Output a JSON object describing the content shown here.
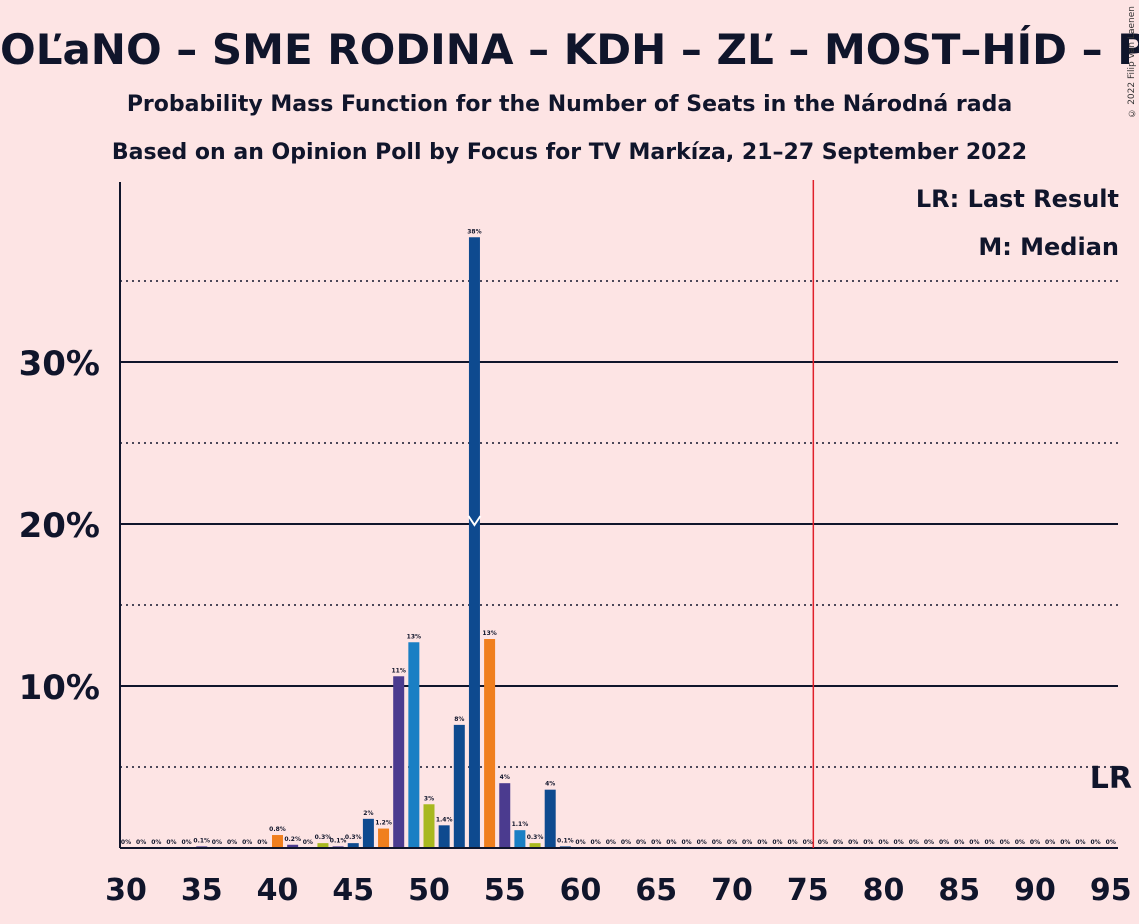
{
  "header": {
    "title": "OĽaNO – SME RODINA – KDH – ZĽ – MOST–HÍD – PS–SPOLU – SaS",
    "subtitle": "Probability Mass Function for the Number of Seats in the Národná rada",
    "subtitle2": "Based on an Opinion Poll by Focus for TV Markíza, 21–27 September 2022",
    "copyright": "© 2022 Filip van Laenen"
  },
  "legend": {
    "last_result": "LR: Last Result",
    "median": "M: Median",
    "lr_marker": "LR"
  },
  "colors": {
    "background": "#fde4e4",
    "axis": "#10152b",
    "majority_line": "#e0202a",
    "bar_palette": [
      "#4b3b8f",
      "#0e4a8f",
      "#1a7fc4",
      "#f07f1e",
      "#a8b81f",
      "#3d8a3a"
    ]
  },
  "chart_data": {
    "type": "bar",
    "xlim": [
      30,
      95
    ],
    "ylim": [
      0,
      40
    ],
    "x_ticks": [
      30,
      35,
      40,
      45,
      50,
      55,
      60,
      65,
      70,
      75,
      80,
      85,
      90,
      95
    ],
    "y_ticks_labeled": [
      {
        "value": 10,
        "label": "10%"
      },
      {
        "value": 20,
        "label": "20%"
      },
      {
        "value": 30,
        "label": "30%"
      }
    ],
    "y_gridlines_dotted": [
      5,
      15,
      25,
      35
    ],
    "majority_line": 76,
    "last_result": 95,
    "median": 53,
    "bars": [
      {
        "x": 30,
        "value": 0,
        "label": "0%",
        "color": "#4b3b8f"
      },
      {
        "x": 31,
        "value": 0,
        "label": "0%",
        "color": "#0e4a8f"
      },
      {
        "x": 32,
        "value": 0,
        "label": "0%",
        "color": "#1a7fc4"
      },
      {
        "x": 33,
        "value": 0,
        "label": "0%",
        "color": "#f07f1e"
      },
      {
        "x": 34,
        "value": 0,
        "label": "0%",
        "color": "#a8b81f"
      },
      {
        "x": 35,
        "value": 0.1,
        "label": "0.1%",
        "color": "#4b3b8f"
      },
      {
        "x": 36,
        "value": 0,
        "label": "0%",
        "color": "#0e4a8f"
      },
      {
        "x": 37,
        "value": 0,
        "label": "0%",
        "color": "#1a7fc4"
      },
      {
        "x": 38,
        "value": 0,
        "label": "0%",
        "color": "#f07f1e"
      },
      {
        "x": 39,
        "value": 0,
        "label": "0%",
        "color": "#a8b81f"
      },
      {
        "x": 40,
        "value": 0.8,
        "label": "0.8%",
        "color": "#f07f1e"
      },
      {
        "x": 41,
        "value": 0.2,
        "label": "0.2%",
        "color": "#4b3b8f"
      },
      {
        "x": 42,
        "value": 0,
        "label": "0%",
        "color": "#0e4a8f"
      },
      {
        "x": 43,
        "value": 0.3,
        "label": "0.3%",
        "color": "#a8b81f"
      },
      {
        "x": 44,
        "value": 0.1,
        "label": "0.1%",
        "color": "#4b3b8f"
      },
      {
        "x": 45,
        "value": 0.3,
        "label": "0.3%",
        "color": "#0e4a8f"
      },
      {
        "x": 46,
        "value": 1.8,
        "label": "2%",
        "color": "#0e4a8f"
      },
      {
        "x": 47,
        "value": 1.2,
        "label": "1.2%",
        "color": "#f07f1e"
      },
      {
        "x": 48,
        "value": 10.6,
        "label": "11%",
        "color": "#4b3b8f"
      },
      {
        "x": 49,
        "value": 12.7,
        "label": "13%",
        "color": "#1a7fc4"
      },
      {
        "x": 50,
        "value": 2.7,
        "label": "3%",
        "color": "#a8b81f"
      },
      {
        "x": 51,
        "value": 1.4,
        "label": "1.4%",
        "color": "#0e4a8f"
      },
      {
        "x": 52,
        "value": 7.6,
        "label": "8%",
        "color": "#0e4a8f"
      },
      {
        "x": 53,
        "value": 37.7,
        "label": "38%",
        "color": "#0e4a8f"
      },
      {
        "x": 54,
        "value": 12.9,
        "label": "13%",
        "color": "#f07f1e"
      },
      {
        "x": 55,
        "value": 4.0,
        "label": "4%",
        "color": "#4b3b8f"
      },
      {
        "x": 56,
        "value": 1.1,
        "label": "1.1%",
        "color": "#1a7fc4"
      },
      {
        "x": 57,
        "value": 0.3,
        "label": "0.3%",
        "color": "#a8b81f"
      },
      {
        "x": 58,
        "value": 3.6,
        "label": "4%",
        "color": "#0e4a8f"
      },
      {
        "x": 59,
        "value": 0.1,
        "label": "0.1%",
        "color": "#0e4a8f"
      },
      {
        "x": 60,
        "value": 0,
        "label": "0%",
        "color": "#0e4a8f"
      },
      {
        "x": 61,
        "value": 0,
        "label": "0%",
        "color": "#0e4a8f"
      },
      {
        "x": 62,
        "value": 0,
        "label": "0%",
        "color": "#0e4a8f"
      },
      {
        "x": 63,
        "value": 0,
        "label": "0%",
        "color": "#0e4a8f"
      },
      {
        "x": 64,
        "value": 0,
        "label": "0%",
        "color": "#0e4a8f"
      },
      {
        "x": 65,
        "value": 0,
        "label": "0%",
        "color": "#0e4a8f"
      },
      {
        "x": 66,
        "value": 0,
        "label": "0%",
        "color": "#0e4a8f"
      },
      {
        "x": 67,
        "value": 0,
        "label": "0%",
        "color": "#0e4a8f"
      },
      {
        "x": 68,
        "value": 0,
        "label": "0%",
        "color": "#0e4a8f"
      },
      {
        "x": 69,
        "value": 0,
        "label": "0%",
        "color": "#0e4a8f"
      },
      {
        "x": 70,
        "value": 0,
        "label": "0%",
        "color": "#0e4a8f"
      },
      {
        "x": 71,
        "value": 0,
        "label": "0%",
        "color": "#0e4a8f"
      },
      {
        "x": 72,
        "value": 0,
        "label": "0%",
        "color": "#0e4a8f"
      },
      {
        "x": 73,
        "value": 0,
        "label": "0%",
        "color": "#0e4a8f"
      },
      {
        "x": 74,
        "value": 0,
        "label": "0%",
        "color": "#0e4a8f"
      },
      {
        "x": 75,
        "value": 0,
        "label": "0%",
        "color": "#0e4a8f"
      },
      {
        "x": 76,
        "value": 0,
        "label": "0%",
        "color": "#0e4a8f"
      },
      {
        "x": 77,
        "value": 0,
        "label": "0%",
        "color": "#0e4a8f"
      },
      {
        "x": 78,
        "value": 0,
        "label": "0%",
        "color": "#0e4a8f"
      },
      {
        "x": 79,
        "value": 0,
        "label": "0%",
        "color": "#0e4a8f"
      },
      {
        "x": 80,
        "value": 0,
        "label": "0%",
        "color": "#0e4a8f"
      },
      {
        "x": 81,
        "value": 0,
        "label": "0%",
        "color": "#0e4a8f"
      },
      {
        "x": 82,
        "value": 0,
        "label": "0%",
        "color": "#0e4a8f"
      },
      {
        "x": 83,
        "value": 0,
        "label": "0%",
        "color": "#0e4a8f"
      },
      {
        "x": 84,
        "value": 0,
        "label": "0%",
        "color": "#0e4a8f"
      },
      {
        "x": 85,
        "value": 0,
        "label": "0%",
        "color": "#0e4a8f"
      },
      {
        "x": 86,
        "value": 0,
        "label": "0%",
        "color": "#0e4a8f"
      },
      {
        "x": 87,
        "value": 0,
        "label": "0%",
        "color": "#0e4a8f"
      },
      {
        "x": 88,
        "value": 0,
        "label": "0%",
        "color": "#0e4a8f"
      },
      {
        "x": 89,
        "value": 0,
        "label": "0%",
        "color": "#0e4a8f"
      },
      {
        "x": 90,
        "value": 0,
        "label": "0%",
        "color": "#0e4a8f"
      },
      {
        "x": 91,
        "value": 0,
        "label": "0%",
        "color": "#0e4a8f"
      },
      {
        "x": 92,
        "value": 0,
        "label": "0%",
        "color": "#0e4a8f"
      },
      {
        "x": 93,
        "value": 0,
        "label": "0%",
        "color": "#0e4a8f"
      },
      {
        "x": 94,
        "value": 0,
        "label": "0%",
        "color": "#0e4a8f"
      },
      {
        "x": 95,
        "value": 0,
        "label": "0%",
        "color": "#0e4a8f"
      }
    ]
  }
}
